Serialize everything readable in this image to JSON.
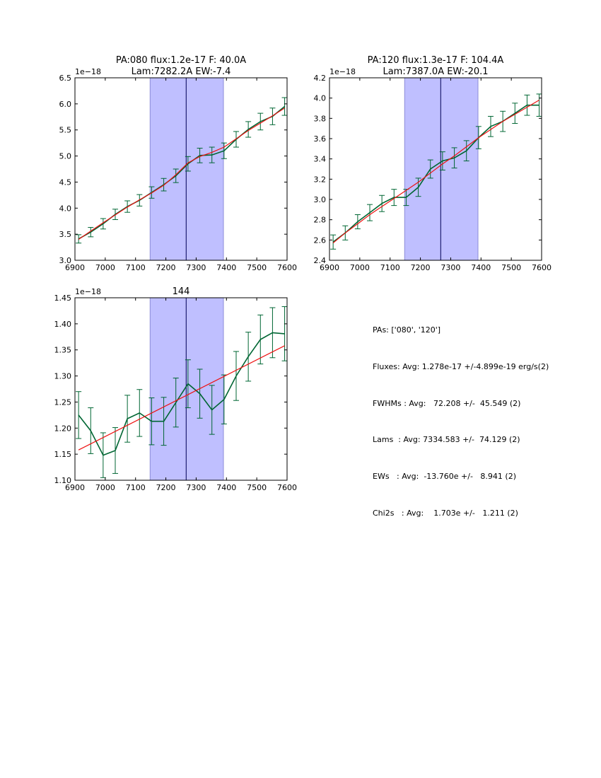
{
  "chart_data": [
    {
      "type": "line",
      "title": [
        "PA:080 flux:1.2e-17 F: 40.0A",
        "Lam:7282.2A EW:-7.4"
      ],
      "offset_label": "1e−18",
      "xlim": [
        6900,
        7600
      ],
      "ylim": [
        3.0,
        6.5
      ],
      "xticks": [
        6900,
        7000,
        7100,
        7200,
        7300,
        7400,
        7500,
        7600
      ],
      "yticks": [
        3.0,
        3.5,
        4.0,
        4.5,
        5.0,
        5.5,
        6.0,
        6.5
      ],
      "xtick_labels": [
        "6900",
        "7000",
        "7100",
        "7200",
        "7300",
        "7400",
        "7500",
        "7600"
      ],
      "ytick_labels": [
        "3.0",
        "3.5",
        "4.0",
        "4.5",
        "5.0",
        "5.5",
        "6.0",
        "6.5"
      ],
      "band": [
        7148,
        7390
      ],
      "center": 7267,
      "series": [
        {
          "name": "data",
          "color": "#006633",
          "x": [
            6912,
            6952,
            6993,
            7033,
            7073,
            7113,
            7153,
            7193,
            7233,
            7273,
            7312,
            7352,
            7392,
            7432,
            7472,
            7512,
            7552,
            7592
          ],
          "y": [
            3.41,
            3.54,
            3.7,
            3.88,
            4.03,
            4.15,
            4.3,
            4.45,
            4.62,
            4.85,
            5.01,
            5.02,
            5.1,
            5.32,
            5.51,
            5.66,
            5.76,
            5.95
          ],
          "yerr": [
            0.08,
            0.09,
            0.1,
            0.1,
            0.11,
            0.11,
            0.11,
            0.12,
            0.13,
            0.14,
            0.14,
            0.15,
            0.15,
            0.15,
            0.15,
            0.16,
            0.16,
            0.17
          ]
        },
        {
          "name": "fit",
          "color": "#ee1111",
          "x": [
            6912,
            6952,
            6993,
            7033,
            7073,
            7113,
            7153,
            7193,
            7233,
            7273,
            7312,
            7352,
            7392,
            7432,
            7472,
            7512,
            7552,
            7592
          ],
          "y": [
            3.4,
            3.56,
            3.72,
            3.87,
            4.02,
            4.16,
            4.29,
            4.44,
            4.64,
            4.87,
            4.99,
            5.07,
            5.17,
            5.33,
            5.49,
            5.63,
            5.77,
            5.92
          ]
        }
      ]
    },
    {
      "type": "line",
      "title": [
        "PA:120 flux:1.3e-17 F: 104.4A",
        "Lam:7387.0A EW:-20.1"
      ],
      "offset_label": "1e−18",
      "xlim": [
        6900,
        7600
      ],
      "ylim": [
        2.4,
        4.2
      ],
      "xticks": [
        6900,
        7000,
        7100,
        7200,
        7300,
        7400,
        7500,
        7600
      ],
      "yticks": [
        2.4,
        2.6,
        2.8,
        3.0,
        3.2,
        3.4,
        3.6,
        3.8,
        4.0,
        4.2
      ],
      "xtick_labels": [
        "6900",
        "7000",
        "7100",
        "7200",
        "7300",
        "7400",
        "7500",
        "7600"
      ],
      "ytick_labels": [
        "2.4",
        "2.6",
        "2.8",
        "3.0",
        "3.2",
        "3.4",
        "3.6",
        "3.8",
        "4.0",
        "4.2"
      ],
      "band": [
        7148,
        7390
      ],
      "center": 7267,
      "series": [
        {
          "name": "data",
          "color": "#006633",
          "x": [
            6912,
            6952,
            6993,
            7033,
            7073,
            7113,
            7153,
            7193,
            7233,
            7273,
            7312,
            7352,
            7392,
            7432,
            7472,
            7512,
            7552,
            7592
          ],
          "y": [
            2.58,
            2.67,
            2.78,
            2.87,
            2.96,
            3.02,
            3.02,
            3.12,
            3.3,
            3.38,
            3.41,
            3.48,
            3.61,
            3.72,
            3.77,
            3.85,
            3.93,
            3.93
          ],
          "yerr": [
            0.07,
            0.07,
            0.07,
            0.08,
            0.08,
            0.08,
            0.08,
            0.09,
            0.09,
            0.09,
            0.1,
            0.1,
            0.11,
            0.1,
            0.1,
            0.1,
            0.1,
            0.11
          ]
        },
        {
          "name": "fit",
          "color": "#ee1111",
          "x": [
            6912,
            6952,
            6993,
            7033,
            7073,
            7113,
            7153,
            7193,
            7233,
            7273,
            7312,
            7352,
            7392,
            7432,
            7472,
            7512,
            7552,
            7592
          ],
          "y": [
            2.57,
            2.67,
            2.76,
            2.85,
            2.93,
            3.01,
            3.09,
            3.17,
            3.26,
            3.35,
            3.43,
            3.52,
            3.61,
            3.69,
            3.77,
            3.84,
            3.91,
            3.98
          ]
        }
      ]
    },
    {
      "type": "line",
      "title": [
        "144"
      ],
      "offset_label": "1e−18",
      "xlim": [
        6900,
        7600
      ],
      "ylim": [
        1.1,
        1.45
      ],
      "xticks": [
        6900,
        7000,
        7100,
        7200,
        7300,
        7400,
        7500,
        7600
      ],
      "yticks": [
        1.1,
        1.15,
        1.2,
        1.25,
        1.3,
        1.35,
        1.4,
        1.45
      ],
      "xtick_labels": [
        "6900",
        "7000",
        "7100",
        "7200",
        "7300",
        "7400",
        "7500",
        "7600"
      ],
      "ytick_labels": [
        "1.10",
        "1.15",
        "1.20",
        "1.25",
        "1.30",
        "1.35",
        "1.40",
        "1.45"
      ],
      "band": [
        7148,
        7390
      ],
      "center": 7267,
      "series": [
        {
          "name": "data",
          "color": "#006633",
          "x": [
            6912,
            6952,
            6993,
            7033,
            7073,
            7113,
            7153,
            7193,
            7233,
            7273,
            7312,
            7352,
            7392,
            7432,
            7472,
            7512,
            7552,
            7592
          ],
          "y": [
            1.225,
            1.195,
            1.148,
            1.157,
            1.218,
            1.229,
            1.213,
            1.213,
            1.249,
            1.285,
            1.266,
            1.235,
            1.255,
            1.3,
            1.337,
            1.37,
            1.383,
            1.381
          ],
          "yerr": [
            0.045,
            0.044,
            0.043,
            0.044,
            0.045,
            0.045,
            0.045,
            0.046,
            0.047,
            0.046,
            0.047,
            0.047,
            0.047,
            0.047,
            0.047,
            0.047,
            0.048,
            0.052
          ]
        },
        {
          "name": "fit",
          "color": "#ee1111",
          "x": [
            6912,
            7592
          ],
          "y": [
            1.158,
            1.358
          ]
        }
      ]
    }
  ],
  "stats": {
    "pas": "PAs: ['080', '120']",
    "fluxes": "Fluxes: Avg: 1.278e-17 +/-4.899e-19 erg/s(2)",
    "fwhms": "FWHMs : Avg:   72.208 +/-  45.549 (2)",
    "lams": "Lams  : Avg: 7334.583 +/-  74.129 (2)",
    "ews": "EWs   : Avg:  -13.760e +/-   8.941 (2)",
    "chi2s": "Chi2s   : Avg:    1.703e +/-   1.211 (2)"
  },
  "colors": {
    "band_fill": "#bfbfff",
    "band_edge": "#8c8cd8",
    "center_line": "#000055",
    "data_line": "#006633",
    "fit_line": "#ee1111"
  }
}
